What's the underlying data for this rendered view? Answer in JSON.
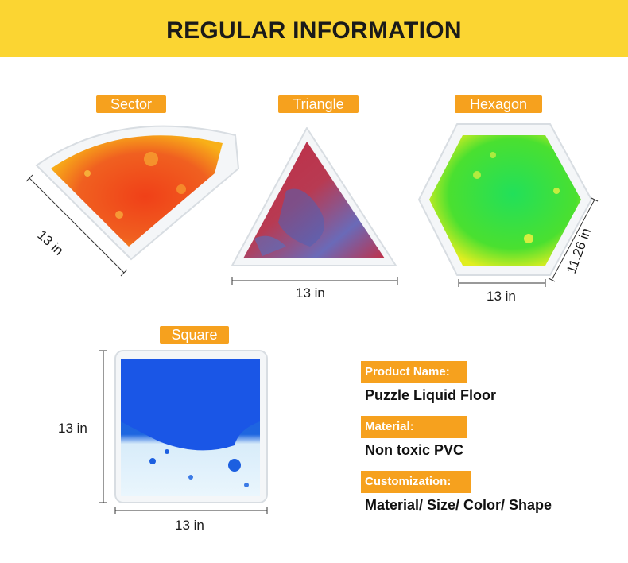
{
  "header": {
    "title": "REGULAR INFORMATION"
  },
  "shapes": {
    "sector": {
      "label": "Sector",
      "dimension": "13 in"
    },
    "triangle": {
      "label": "Triangle",
      "dimension": "13 in"
    },
    "hexagon": {
      "label": "Hexagon",
      "width": "13 in",
      "height": "11.26 in"
    },
    "square": {
      "label": "Square",
      "width": "13 in",
      "height": "13 in"
    }
  },
  "info": {
    "product_name": {
      "label": "Product Name:",
      "value": "Puzzle Liquid Floor"
    },
    "material": {
      "label": "Material:",
      "value": "Non toxic PVC"
    },
    "customization": {
      "label": "Customization:",
      "value": "Material/ Size/ Color/ Shape"
    }
  },
  "colors": {
    "banner": "#fbd532",
    "tag": "#f6a11e",
    "sector_fill": "#f0501a",
    "triangle_fill": "#b1344a",
    "hexagon_fill": "#3be23c",
    "square_fill": "#1c5fe0"
  }
}
